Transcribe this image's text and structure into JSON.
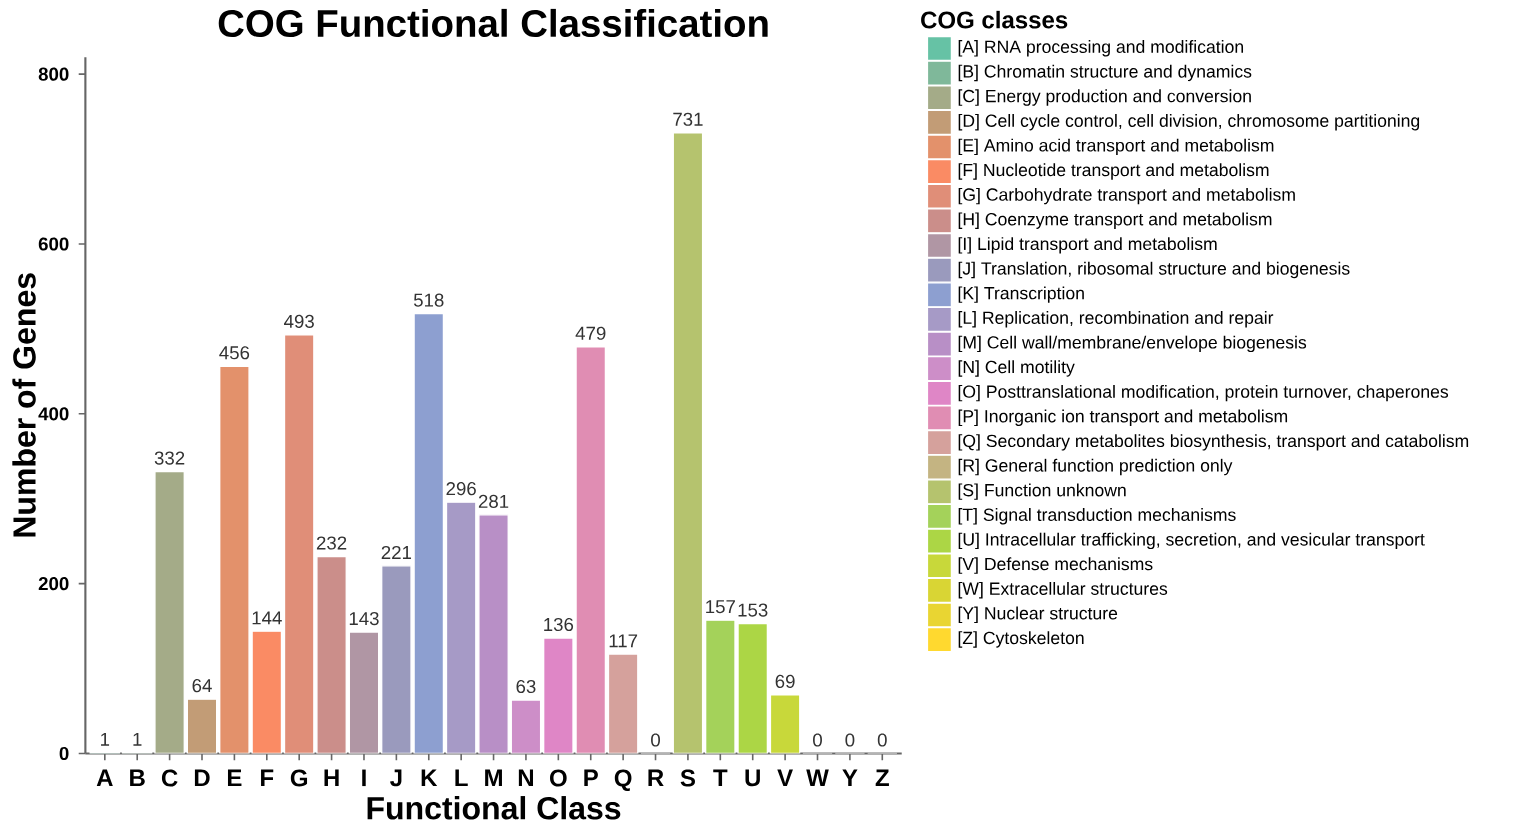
{
  "chart_data": {
    "type": "bar",
    "title": "COG Functional Classification",
    "xlabel": "Functional Class",
    "ylabel": "Number of Genes",
    "legend_title": "COG classes",
    "categories": [
      "A",
      "B",
      "C",
      "D",
      "E",
      "F",
      "G",
      "H",
      "I",
      "J",
      "K",
      "L",
      "M",
      "N",
      "O",
      "P",
      "Q",
      "R",
      "S",
      "T",
      "U",
      "V",
      "W",
      "Y",
      "Z"
    ],
    "series": [
      {
        "name": "[A] RNA processing and modification",
        "color": "#66c2a5",
        "values": [
          1,
          null,
          null,
          null,
          null,
          null,
          null,
          null,
          null,
          null,
          null,
          null,
          null,
          null,
          null,
          null,
          null,
          null,
          null,
          null,
          null,
          null,
          null,
          null,
          null
        ]
      },
      {
        "name": "[B] Chromatin structure and dynamics",
        "color": "#7fb89a",
        "values": [
          null,
          1,
          null,
          null,
          null,
          null,
          null,
          null,
          null,
          null,
          null,
          null,
          null,
          null,
          null,
          null,
          null,
          null,
          null,
          null,
          null,
          null,
          null,
          null,
          null
        ]
      },
      {
        "name": "[C] Energy production and conversion",
        "color": "#a4ab88",
        "values": [
          null,
          null,
          332,
          null,
          null,
          null,
          null,
          null,
          null,
          null,
          null,
          null,
          null,
          null,
          null,
          null,
          null,
          null,
          null,
          null,
          null,
          null,
          null,
          null,
          null
        ]
      },
      {
        "name": "[D] Cell cycle control, cell division, chromosome partitioning",
        "color": "#c29c76",
        "values": [
          null,
          null,
          null,
          64,
          null,
          null,
          null,
          null,
          null,
          null,
          null,
          null,
          null,
          null,
          null,
          null,
          null,
          null,
          null,
          null,
          null,
          null,
          null,
          null,
          null
        ]
      },
      {
        "name": "[E] Amino acid transport and metabolism",
        "color": "#e3916b",
        "values": [
          null,
          null,
          null,
          null,
          456,
          null,
          null,
          null,
          null,
          null,
          null,
          null,
          null,
          null,
          null,
          null,
          null,
          null,
          null,
          null,
          null,
          null,
          null,
          null,
          null
        ]
      },
      {
        "name": "[F] Nucleotide transport and metabolism",
        "color": "#fa8b64",
        "values": [
          null,
          null,
          null,
          null,
          null,
          144,
          null,
          null,
          null,
          null,
          null,
          null,
          null,
          null,
          null,
          null,
          null,
          null,
          null,
          null,
          null,
          null,
          null,
          null,
          null
        ]
      },
      {
        "name": "[G] Carbohydrate transport and metabolism",
        "color": "#e08e78",
        "values": [
          null,
          null,
          null,
          null,
          null,
          null,
          493,
          null,
          null,
          null,
          null,
          null,
          null,
          null,
          null,
          null,
          null,
          null,
          null,
          null,
          null,
          null,
          null,
          null,
          null
        ]
      },
      {
        "name": "[H] Coenzyme transport and metabolism",
        "color": "#cb8e8a",
        "values": [
          null,
          null,
          null,
          null,
          null,
          null,
          null,
          232,
          null,
          null,
          null,
          null,
          null,
          null,
          null,
          null,
          null,
          null,
          null,
          null,
          null,
          null,
          null,
          null,
          null
        ]
      },
      {
        "name": "[I] Lipid transport and metabolism",
        "color": "#b096a4",
        "values": [
          null,
          null,
          null,
          null,
          null,
          null,
          null,
          null,
          143,
          null,
          null,
          null,
          null,
          null,
          null,
          null,
          null,
          null,
          null,
          null,
          null,
          null,
          null,
          null,
          null
        ]
      },
      {
        "name": "[J] Translation, ribosomal structure and biogenesis",
        "color": "#9a9abd",
        "values": [
          null,
          null,
          null,
          null,
          null,
          null,
          null,
          null,
          null,
          221,
          null,
          null,
          null,
          null,
          null,
          null,
          null,
          null,
          null,
          null,
          null,
          null,
          null,
          null,
          null
        ]
      },
      {
        "name": "[K] Transcription",
        "color": "#8d9fd0",
        "values": [
          null,
          null,
          null,
          null,
          null,
          null,
          null,
          null,
          null,
          null,
          518,
          null,
          null,
          null,
          null,
          null,
          null,
          null,
          null,
          null,
          null,
          null,
          null,
          null,
          null
        ]
      },
      {
        "name": "[L] Replication, recombination and repair",
        "color": "#a69ac6",
        "values": [
          null,
          null,
          null,
          null,
          null,
          null,
          null,
          null,
          null,
          null,
          null,
          296,
          null,
          null,
          null,
          null,
          null,
          null,
          null,
          null,
          null,
          null,
          null,
          null,
          null
        ]
      },
      {
        "name": "[M] Cell wall/membrane/envelope biogenesis",
        "color": "#b88fc6",
        "values": [
          null,
          null,
          null,
          null,
          null,
          null,
          null,
          null,
          null,
          null,
          null,
          null,
          281,
          null,
          null,
          null,
          null,
          null,
          null,
          null,
          null,
          null,
          null,
          null,
          null
        ]
      },
      {
        "name": "[N] Cell motility",
        "color": "#cd8ec8",
        "values": [
          null,
          null,
          null,
          null,
          null,
          null,
          null,
          null,
          null,
          null,
          null,
          null,
          null,
          63,
          null,
          null,
          null,
          null,
          null,
          null,
          null,
          null,
          null,
          null,
          null
        ]
      },
      {
        "name": "[O] Posttranslational modification, protein turnover, chaperones",
        "color": "#df86c6",
        "values": [
          null,
          null,
          null,
          null,
          null,
          null,
          null,
          null,
          null,
          null,
          null,
          null,
          null,
          null,
          136,
          null,
          null,
          null,
          null,
          null,
          null,
          null,
          null,
          null,
          null
        ]
      },
      {
        "name": "[P] Inorganic ion transport and metabolism",
        "color": "#e08db3",
        "values": [
          null,
          null,
          null,
          null,
          null,
          null,
          null,
          null,
          null,
          null,
          null,
          null,
          null,
          null,
          null,
          479,
          null,
          null,
          null,
          null,
          null,
          null,
          null,
          null,
          null
        ]
      },
      {
        "name": "[Q] Secondary metabolites biosynthesis, transport and catabolism",
        "color": "#d5a19c",
        "values": [
          null,
          null,
          null,
          null,
          null,
          null,
          null,
          null,
          null,
          null,
          null,
          null,
          null,
          null,
          null,
          null,
          117,
          null,
          null,
          null,
          null,
          null,
          null,
          null,
          null
        ]
      },
      {
        "name": "[R] General function prediction only",
        "color": "#c4b482",
        "values": [
          null,
          null,
          null,
          null,
          null,
          null,
          null,
          null,
          null,
          null,
          null,
          null,
          null,
          null,
          null,
          null,
          null,
          0,
          null,
          null,
          null,
          null,
          null,
          null,
          null
        ]
      },
      {
        "name": "[S] Function unknown",
        "color": "#b5c36e",
        "values": [
          null,
          null,
          null,
          null,
          null,
          null,
          null,
          null,
          null,
          null,
          null,
          null,
          null,
          null,
          null,
          null,
          null,
          null,
          731,
          null,
          null,
          null,
          null,
          null,
          null
        ]
      },
      {
        "name": "[T] Signal transduction mechanisms",
        "color": "#a4d25a",
        "values": [
          null,
          null,
          null,
          null,
          null,
          null,
          null,
          null,
          null,
          null,
          null,
          null,
          null,
          null,
          null,
          null,
          null,
          null,
          null,
          157,
          null,
          null,
          null,
          null,
          null
        ]
      },
      {
        "name": "[U] Intracellular trafficking, secretion, and vesicular transport",
        "color": "#acd645",
        "values": [
          null,
          null,
          null,
          null,
          null,
          null,
          null,
          null,
          null,
          null,
          null,
          null,
          null,
          null,
          null,
          null,
          null,
          null,
          null,
          null,
          153,
          null,
          null,
          null,
          null
        ]
      },
      {
        "name": "[V] Defense mechanisms",
        "color": "#c8d83a",
        "values": [
          null,
          null,
          null,
          null,
          null,
          null,
          null,
          null,
          null,
          null,
          null,
          null,
          null,
          null,
          null,
          null,
          null,
          null,
          null,
          null,
          null,
          69,
          null,
          null,
          null
        ]
      },
      {
        "name": "[W] Extracellular structures",
        "color": "#d9d534",
        "values": [
          null,
          null,
          null,
          null,
          null,
          null,
          null,
          null,
          null,
          null,
          null,
          null,
          null,
          null,
          null,
          null,
          null,
          null,
          null,
          null,
          null,
          null,
          0,
          null,
          null
        ]
      },
      {
        "name": "[Y] Nuclear structure",
        "color": "#e9d532",
        "values": [
          null,
          null,
          null,
          null,
          null,
          null,
          null,
          null,
          null,
          null,
          null,
          null,
          null,
          null,
          null,
          null,
          null,
          null,
          null,
          null,
          null,
          null,
          null,
          0,
          null
        ]
      },
      {
        "name": "[Z] Cytoskeleton",
        "color": "#ffd92f",
        "values": [
          null,
          null,
          null,
          null,
          null,
          null,
          null,
          null,
          null,
          null,
          null,
          null,
          null,
          null,
          null,
          null,
          null,
          null,
          null,
          null,
          null,
          null,
          null,
          null,
          0
        ]
      }
    ],
    "data_labels": true,
    "ylim": [
      0,
      820
    ],
    "yticks": [
      0,
      200,
      400,
      600,
      800
    ],
    "grid": false,
    "legend": "right"
  }
}
